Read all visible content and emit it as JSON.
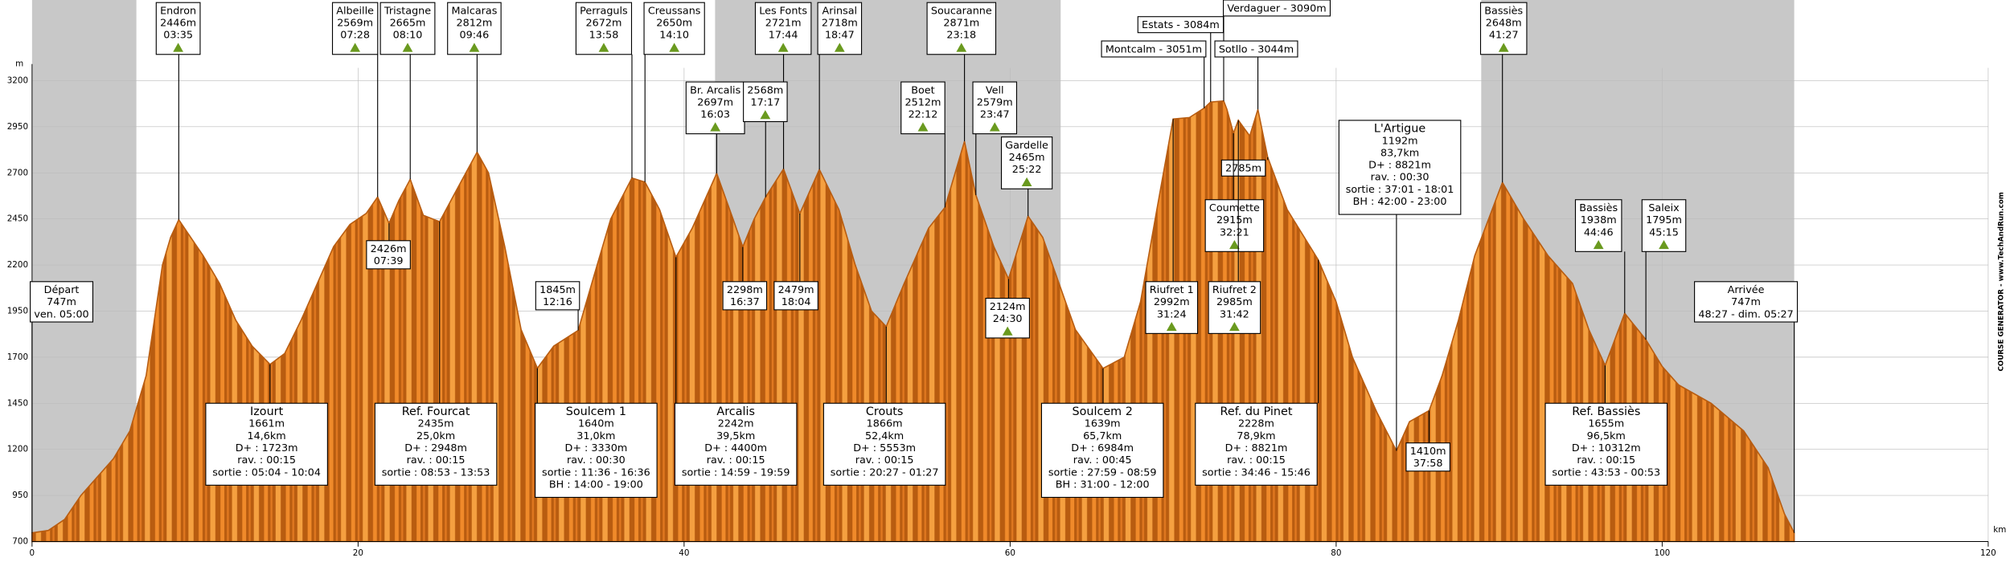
{
  "chart_data": {
    "type": "area",
    "x_label": "km",
    "y_label": "m",
    "credit": "COURSE GENERATOR - www.TechAndRun.com",
    "color": "#b85c10",
    "shade_color": "#c8c8c8",
    "grid": true,
    "xlim": [
      0,
      120
    ],
    "ylim": [
      700,
      3200
    ],
    "xticks": [
      0,
      20,
      40,
      60,
      80,
      100,
      120
    ],
    "yticks": [
      700,
      950,
      1200,
      1450,
      1700,
      1950,
      2200,
      2450,
      2700,
      2950,
      3200
    ],
    "shaded_ranges": [
      [
        0,
        6.4
      ],
      [
        41.9,
        63.1
      ],
      [
        88.9,
        108.1
      ]
    ],
    "x": [
      0,
      1,
      2,
      3,
      4,
      5,
      6,
      7,
      7.5,
      8,
      8.5,
      9,
      9.5,
      10.5,
      11.5,
      12.5,
      13.5,
      14.6,
      15.5,
      16.5,
      17.5,
      18.5,
      19.5,
      20.5,
      21.2,
      21.9,
      22.5,
      23.2,
      24,
      25,
      26,
      27.3,
      28,
      29,
      30,
      31,
      32,
      33.5,
      34.5,
      35.5,
      36.8,
      37.6,
      38.5,
      39.5,
      40.5,
      42,
      43,
      43.6,
      44.3,
      45,
      46.1,
      47.1,
      48.3,
      49.5,
      50.5,
      51.5,
      52.4,
      53.5,
      55,
      56,
      57.2,
      57.9,
      59,
      59.9,
      61.1,
      62,
      63,
      64,
      65.7,
      67,
      68,
      69,
      70,
      71,
      71.9,
      72.3,
      73.1,
      73.3,
      73.7,
      74,
      74.7,
      75.2,
      75.8,
      77,
      78.9,
      80,
      81,
      82.5,
      83.7,
      84.5,
      85.7,
      86.5,
      87.5,
      88.5,
      90.2,
      91.5,
      93,
      94.5,
      95.5,
      96.5,
      97.7,
      98.5,
      99,
      100,
      101,
      103,
      105,
      106.5,
      107.5,
      108.1
    ],
    "values": [
      747,
      760,
      820,
      950,
      1050,
      1150,
      1300,
      1600,
      1900,
      2200,
      2350,
      2446,
      2380,
      2250,
      2100,
      1900,
      1760,
      1661,
      1720,
      1900,
      2100,
      2300,
      2420,
      2480,
      2569,
      2426,
      2550,
      2665,
      2470,
      2435,
      2600,
      2812,
      2700,
      2300,
      1850,
      1640,
      1760,
      1845,
      2150,
      2450,
      2672,
      2650,
      2500,
      2242,
      2400,
      2697,
      2450,
      2298,
      2450,
      2568,
      2721,
      2479,
      2718,
      2500,
      2200,
      1950,
      1866,
      2100,
      2400,
      2512,
      2871,
      2579,
      2300,
      2124,
      2465,
      2350,
      2100,
      1850,
      1639,
      1700,
      2000,
      2500,
      2992,
      3000,
      3051,
      3084,
      3090,
      3044,
      2915,
      2985,
      2900,
      3044,
      2785,
      2500,
      2228,
      2000,
      1700,
      1400,
      1192,
      1350,
      1410,
      1600,
      1900,
      2250,
      2648,
      2450,
      2250,
      2100,
      1850,
      1655,
      1938,
      1850,
      1795,
      1650,
      1550,
      1450,
      1300,
      1100,
      850,
      747
    ],
    "annotations": [
      {
        "x": 9.0,
        "lines": [
          "Endron",
          "2446m",
          "03:35"
        ]
      },
      {
        "x": 21.2,
        "lines": [
          "Albeille",
          "2569m",
          "07:28"
        ]
      },
      {
        "x": 23.2,
        "lines": [
          "Tristagne",
          "2665m",
          "08:10"
        ]
      },
      {
        "x": 27.3,
        "lines": [
          "Malcaras",
          "2812m",
          "09:46"
        ]
      },
      {
        "x": 36.8,
        "lines": [
          "Perraguls",
          "2672m",
          "13:58"
        ]
      },
      {
        "x": 37.6,
        "lines": [
          "Creussans",
          "2650m",
          "14:10"
        ]
      },
      {
        "x": 46.1,
        "lines": [
          "Les Fonts",
          "2721m",
          "17:44"
        ]
      },
      {
        "x": 48.3,
        "lines": [
          "Arinsal",
          "2718m",
          "18:47"
        ]
      },
      {
        "x": 57.2,
        "lines": [
          "Soucaranne",
          "2871m",
          "23:18"
        ]
      },
      {
        "x": 72.3,
        "lines": [
          "Estats - 3084m"
        ]
      },
      {
        "x": 73.1,
        "lines": [
          "Verdaguer - 3090m"
        ]
      },
      {
        "x": 71.9,
        "lines": [
          "Montcalm - 3051m"
        ]
      },
      {
        "x": 75.2,
        "lines": [
          "Sotllo - 3044m"
        ]
      },
      {
        "x": 90.2,
        "lines": [
          "Bassiès",
          "2648m",
          "41:27"
        ]
      },
      {
        "x": 42.0,
        "lines": [
          "Br. Arcalis",
          "2697m",
          "16:03"
        ]
      },
      {
        "x": 45.0,
        "lines": [
          "2568m",
          "17:17"
        ]
      },
      {
        "x": 56.0,
        "lines": [
          "Boet",
          "2512m",
          "22:12"
        ]
      },
      {
        "x": 57.9,
        "lines": [
          "Vell",
          "2579m",
          "23:47"
        ]
      },
      {
        "x": 61.1,
        "lines": [
          "Gardelle",
          "2465m",
          "25:22"
        ]
      },
      {
        "x": 75.8,
        "lines": [
          "2785m"
        ]
      },
      {
        "x": 83.7,
        "lines": [
          "L'Artigue",
          "1192m",
          "83,7km",
          "D+ : 8821m",
          "rav. : 00:30",
          "sortie : 37:01 - 18:01",
          "BH : 42:00 - 23:00"
        ]
      },
      {
        "x": 73.7,
        "lines": [
          "Coumette",
          "2915m",
          "32:21"
        ]
      },
      {
        "x": 97.7,
        "lines": [
          "Bassiès",
          "1938m",
          "44:46"
        ]
      },
      {
        "x": 99.0,
        "lines": [
          "Saleix",
          "1795m",
          "45:15"
        ]
      },
      {
        "x": 21.9,
        "lines": [
          "2426m",
          "07:39"
        ]
      },
      {
        "x": 33.5,
        "lines": [
          "1845m",
          "12:16"
        ]
      },
      {
        "x": 43.6,
        "lines": [
          "2298m",
          "16:37"
        ]
      },
      {
        "x": 47.1,
        "lines": [
          "2479m",
          "18:04"
        ]
      },
      {
        "x": 70.0,
        "lines": [
          "Riufret 1",
          "2992m",
          "31:24"
        ]
      },
      {
        "x": 74.0,
        "lines": [
          "Riufret 2",
          "2985m",
          "31:42"
        ]
      },
      {
        "x": 0,
        "lines": [
          "Départ",
          "747m",
          "ven. 05:00"
        ]
      },
      {
        "x": 108.1,
        "lines": [
          "Arrivée",
          "747m",
          "48:27 - dim. 05:27"
        ]
      },
      {
        "x": 59.9,
        "lines": [
          "2124m",
          "24:30"
        ]
      },
      {
        "x": 85.7,
        "lines": [
          "1410m",
          "37:58"
        ]
      },
      {
        "x": 14.6,
        "lines": [
          "Izourt",
          "1661m",
          "14,6km",
          "D+ : 1723m",
          "rav. : 00:15",
          "sortie : 05:04 - 10:04"
        ]
      },
      {
        "x": 25.0,
        "lines": [
          "Ref. Fourcat",
          "2435m",
          "25,0km",
          "D+ : 2948m",
          "rav. : 00:15",
          "sortie : 08:53 - 13:53"
        ]
      },
      {
        "x": 31.0,
        "lines": [
          "Soulcem 1",
          "1640m",
          "31,0km",
          "D+ : 3330m",
          "rav. : 00:30",
          "sortie : 11:36 - 16:36",
          "BH : 14:00 - 19:00"
        ]
      },
      {
        "x": 39.5,
        "lines": [
          "Arcalis",
          "2242m",
          "39,5km",
          "D+ : 4400m",
          "rav. : 00:15",
          "sortie : 14:59 - 19:59"
        ]
      },
      {
        "x": 52.4,
        "lines": [
          "Crouts",
          "1866m",
          "52,4km",
          "D+ : 5553m",
          "rav. : 00:15",
          "sortie : 20:27 - 01:27"
        ]
      },
      {
        "x": 65.7,
        "lines": [
          "Soulcem 2",
          "1639m",
          "65,7km",
          "D+ : 6984m",
          "rav. : 00:45",
          "sortie : 27:59 - 08:59",
          "BH : 31:00 - 12:00"
        ]
      },
      {
        "x": 78.9,
        "lines": [
          "Ref. du Pinet",
          "2228m",
          "78,9km",
          "D+ : 8821m",
          "rav. : 00:15",
          "sortie : 34:46 - 15:46"
        ]
      },
      {
        "x": 96.5,
        "lines": [
          "Ref. Bassiès",
          "1655m",
          "96,5km",
          "D+ : 10312m",
          "rav. : 00:15",
          "sortie : 43:53 - 00:53"
        ]
      }
    ]
  }
}
